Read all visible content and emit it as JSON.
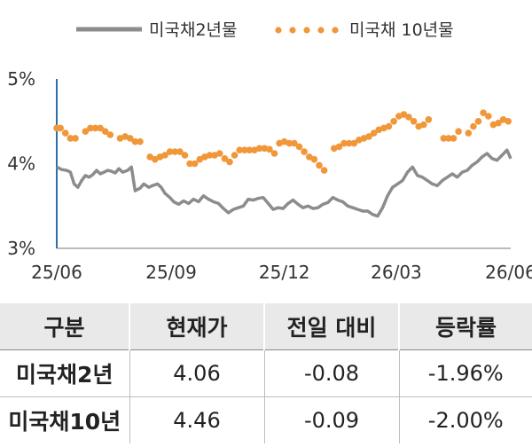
{
  "legend": {
    "series1": "미국채2년물",
    "series2": "미국채 10년물"
  },
  "colors": {
    "us2y": "#8c8c8c",
    "us10y": "#f0973a",
    "axis": "#2f6fa8",
    "header_bg": "#e9e9e9"
  },
  "chart_data": {
    "type": "line",
    "title": "",
    "xlabel": "",
    "ylabel": "",
    "x_range": [
      "2025-06-01",
      "2026-06-01"
    ],
    "ylim": [
      3,
      5
    ],
    "y_ticks": [
      "3%",
      "4%",
      "5%"
    ],
    "x_ticks": [
      {
        "date": "2025-06-01",
        "label": "25/06"
      },
      {
        "date": "2025-09-01",
        "label": "25/09"
      },
      {
        "date": "2025-12-01",
        "label": "25/12"
      },
      {
        "date": "2026-03-01",
        "label": "26/03"
      },
      {
        "date": "2026-06-01",
        "label": "26/06"
      }
    ],
    "legend_position": "top",
    "series": [
      {
        "name": "미국채2년물",
        "style": "line",
        "points": [
          [
            "2025-06-01",
            3.96
          ],
          [
            "2025-06-05",
            3.93
          ],
          [
            "2025-06-09",
            3.92
          ],
          [
            "2025-06-12",
            3.9
          ],
          [
            "2025-06-15",
            3.76
          ],
          [
            "2025-06-18",
            3.72
          ],
          [
            "2025-06-21",
            3.8
          ],
          [
            "2025-06-24",
            3.86
          ],
          [
            "2025-06-27",
            3.84
          ],
          [
            "2025-06-30",
            3.87
          ],
          [
            "2025-07-03",
            3.92
          ],
          [
            "2025-07-06",
            3.88
          ],
          [
            "2025-07-09",
            3.9
          ],
          [
            "2025-07-12",
            3.92
          ],
          [
            "2025-07-15",
            3.91
          ],
          [
            "2025-07-18",
            3.89
          ],
          [
            "2025-07-21",
            3.94
          ],
          [
            "2025-07-24",
            3.9
          ],
          [
            "2025-07-28",
            3.92
          ],
          [
            "2025-07-31",
            3.96
          ],
          [
            "2025-08-03",
            3.68
          ],
          [
            "2025-08-07",
            3.71
          ],
          [
            "2025-08-10",
            3.76
          ],
          [
            "2025-08-14",
            3.72
          ],
          [
            "2025-08-17",
            3.74
          ],
          [
            "2025-08-21",
            3.76
          ],
          [
            "2025-08-24",
            3.72
          ],
          [
            "2025-08-27",
            3.65
          ],
          [
            "2025-08-31",
            3.6
          ],
          [
            "2025-09-03",
            3.55
          ],
          [
            "2025-09-07",
            3.52
          ],
          [
            "2025-09-11",
            3.56
          ],
          [
            "2025-09-15",
            3.53
          ],
          [
            "2025-09-19",
            3.58
          ],
          [
            "2025-09-23",
            3.55
          ],
          [
            "2025-09-27",
            3.62
          ],
          [
            "2025-10-01",
            3.58
          ],
          [
            "2025-10-05",
            3.55
          ],
          [
            "2025-10-09",
            3.53
          ],
          [
            "2025-10-13",
            3.47
          ],
          [
            "2025-10-17",
            3.42
          ],
          [
            "2025-10-21",
            3.46
          ],
          [
            "2025-10-25",
            3.48
          ],
          [
            "2025-10-29",
            3.5
          ],
          [
            "2025-11-02",
            3.58
          ],
          [
            "2025-11-06",
            3.57
          ],
          [
            "2025-11-10",
            3.59
          ],
          [
            "2025-11-14",
            3.6
          ],
          [
            "2025-11-18",
            3.53
          ],
          [
            "2025-11-22",
            3.46
          ],
          [
            "2025-11-26",
            3.48
          ],
          [
            "2025-11-30",
            3.47
          ],
          [
            "2025-12-04",
            3.53
          ],
          [
            "2025-12-08",
            3.57
          ],
          [
            "2025-12-12",
            3.52
          ],
          [
            "2025-12-16",
            3.48
          ],
          [
            "2025-12-20",
            3.5
          ],
          [
            "2025-12-24",
            3.47
          ],
          [
            "2025-12-28",
            3.48
          ],
          [
            "2026-01-01",
            3.52
          ],
          [
            "2026-01-05",
            3.54
          ],
          [
            "2026-01-09",
            3.6
          ],
          [
            "2026-01-13",
            3.57
          ],
          [
            "2026-01-17",
            3.55
          ],
          [
            "2026-01-21",
            3.5
          ],
          [
            "2026-01-25",
            3.48
          ],
          [
            "2026-01-29",
            3.46
          ],
          [
            "2026-02-02",
            3.44
          ],
          [
            "2026-02-06",
            3.44
          ],
          [
            "2026-02-10",
            3.4
          ],
          [
            "2026-02-14",
            3.38
          ],
          [
            "2026-02-18",
            3.48
          ],
          [
            "2026-02-22",
            3.62
          ],
          [
            "2026-02-26",
            3.72
          ],
          [
            "2026-03-02",
            3.76
          ],
          [
            "2026-03-06",
            3.8
          ],
          [
            "2026-03-10",
            3.9
          ],
          [
            "2026-03-14",
            3.96
          ],
          [
            "2026-03-18",
            3.86
          ],
          [
            "2026-03-22",
            3.84
          ],
          [
            "2026-03-26",
            3.8
          ],
          [
            "2026-03-30",
            3.76
          ],
          [
            "2026-04-03",
            3.74
          ],
          [
            "2026-04-07",
            3.8
          ],
          [
            "2026-04-11",
            3.84
          ],
          [
            "2026-04-15",
            3.88
          ],
          [
            "2026-04-19",
            3.84
          ],
          [
            "2026-04-23",
            3.9
          ],
          [
            "2026-04-27",
            3.92
          ],
          [
            "2026-05-01",
            3.98
          ],
          [
            "2026-05-05",
            4.02
          ],
          [
            "2026-05-09",
            4.08
          ],
          [
            "2026-05-13",
            4.12
          ],
          [
            "2026-05-17",
            4.06
          ],
          [
            "2026-05-21",
            4.04
          ],
          [
            "2026-05-25",
            4.1
          ],
          [
            "2026-05-29",
            4.16
          ],
          [
            "2026-06-01",
            4.06
          ]
        ]
      },
      {
        "name": "미국채 10년물",
        "style": "dots",
        "points": [
          [
            "2025-06-01",
            4.42
          ],
          [
            "2025-06-04",
            4.42
          ],
          [
            "2025-06-08",
            4.36
          ],
          [
            "2025-06-12",
            4.3
          ],
          [
            "2025-06-16",
            4.3
          ],
          [
            "2025-06-24",
            4.38
          ],
          [
            "2025-06-28",
            4.42
          ],
          [
            "2025-07-02",
            4.42
          ],
          [
            "2025-07-06",
            4.42
          ],
          [
            "2025-07-10",
            4.38
          ],
          [
            "2025-07-14",
            4.34
          ],
          [
            "2025-07-22",
            4.3
          ],
          [
            "2025-07-26",
            4.32
          ],
          [
            "2025-07-30",
            4.3
          ],
          [
            "2025-08-03",
            4.26
          ],
          [
            "2025-08-07",
            4.26
          ],
          [
            "2025-08-15",
            4.08
          ],
          [
            "2025-08-19",
            4.05
          ],
          [
            "2025-08-23",
            4.08
          ],
          [
            "2025-08-27",
            4.1
          ],
          [
            "2025-08-31",
            4.14
          ],
          [
            "2025-09-04",
            4.14
          ],
          [
            "2025-09-08",
            4.14
          ],
          [
            "2025-09-12",
            4.1
          ],
          [
            "2025-09-16",
            4.0
          ],
          [
            "2025-09-20",
            4.0
          ],
          [
            "2025-09-24",
            4.05
          ],
          [
            "2025-09-28",
            4.08
          ],
          [
            "2025-10-02",
            4.1
          ],
          [
            "2025-10-06",
            4.1
          ],
          [
            "2025-10-10",
            4.12
          ],
          [
            "2025-10-14",
            4.06
          ],
          [
            "2025-10-18",
            4.02
          ],
          [
            "2025-10-22",
            4.1
          ],
          [
            "2025-10-26",
            4.16
          ],
          [
            "2025-10-30",
            4.16
          ],
          [
            "2025-11-03",
            4.16
          ],
          [
            "2025-11-07",
            4.16
          ],
          [
            "2025-11-11",
            4.18
          ],
          [
            "2025-11-15",
            4.18
          ],
          [
            "2025-11-19",
            4.17
          ],
          [
            "2025-11-23",
            4.12
          ],
          [
            "2025-11-27",
            4.24
          ],
          [
            "2025-12-01",
            4.26
          ],
          [
            "2025-12-05",
            4.24
          ],
          [
            "2025-12-09",
            4.24
          ],
          [
            "2025-12-13",
            4.2
          ],
          [
            "2025-12-17",
            4.14
          ],
          [
            "2025-12-21",
            4.08
          ],
          [
            "2025-12-25",
            4.05
          ],
          [
            "2025-12-29",
            3.98
          ],
          [
            "2026-01-02",
            3.92
          ],
          [
            "2026-01-10",
            4.18
          ],
          [
            "2026-01-14",
            4.2
          ],
          [
            "2026-01-18",
            4.24
          ],
          [
            "2026-01-22",
            4.24
          ],
          [
            "2026-01-26",
            4.24
          ],
          [
            "2026-01-30",
            4.28
          ],
          [
            "2026-02-03",
            4.3
          ],
          [
            "2026-02-07",
            4.32
          ],
          [
            "2026-02-11",
            4.36
          ],
          [
            "2026-02-15",
            4.4
          ],
          [
            "2026-02-19",
            4.42
          ],
          [
            "2026-02-23",
            4.44
          ],
          [
            "2026-02-27",
            4.5
          ],
          [
            "2026-03-03",
            4.56
          ],
          [
            "2026-03-07",
            4.58
          ],
          [
            "2026-03-11",
            4.55
          ],
          [
            "2026-03-15",
            4.5
          ],
          [
            "2026-03-19",
            4.44
          ],
          [
            "2026-03-23",
            4.46
          ],
          [
            "2026-03-27",
            4.52
          ],
          [
            "2026-04-08",
            4.3
          ],
          [
            "2026-04-12",
            4.3
          ],
          [
            "2026-04-16",
            4.3
          ],
          [
            "2026-04-20",
            4.38
          ],
          [
            "2026-04-28",
            4.36
          ],
          [
            "2026-05-02",
            4.44
          ],
          [
            "2026-05-06",
            4.5
          ],
          [
            "2026-05-10",
            4.6
          ],
          [
            "2026-05-14",
            4.56
          ],
          [
            "2026-05-18",
            4.46
          ],
          [
            "2026-05-22",
            4.48
          ],
          [
            "2026-05-26",
            4.52
          ],
          [
            "2026-05-30",
            4.5
          ]
        ]
      }
    ]
  },
  "table": {
    "headers": [
      "구분",
      "현재가",
      "전일 대비",
      "등락률"
    ],
    "rows": [
      {
        "name": "미국채2년",
        "price": "4.06",
        "change": "-0.08",
        "rate": "-1.96%"
      },
      {
        "name": "미국채10년",
        "price": "4.46",
        "change": "-0.09",
        "rate": "-2.00%"
      }
    ]
  }
}
